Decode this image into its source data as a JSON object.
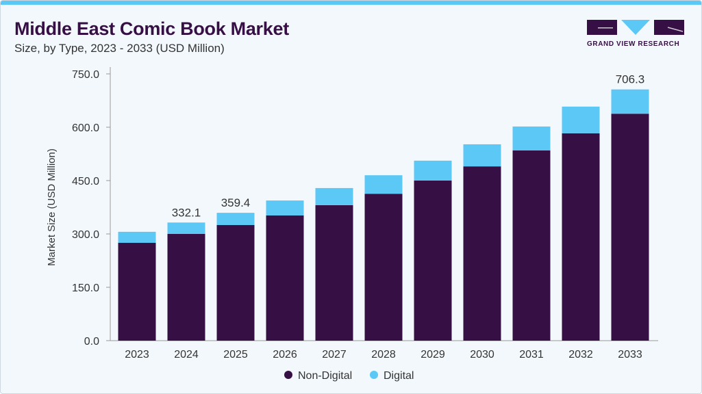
{
  "header": {
    "title": "Middle East Comic Book Market",
    "subtitle": "Size, by Type, 2023 - 2033 (USD Million)"
  },
  "logo": {
    "text": "GRAND VIEW RESEARCH"
  },
  "colors": {
    "non_digital": "#360f45",
    "digital": "#5bc8f5",
    "accent": "#5bc8f5"
  },
  "chart_data": {
    "type": "bar",
    "stacked": true,
    "title": "Middle East Comic Book Market",
    "subtitle": "Size, by Type, 2023 - 2033 (USD Million)",
    "xlabel": "",
    "ylabel": "Market Size (USD Million)",
    "ylim": [
      0,
      750
    ],
    "yticks": [
      "0.0",
      "150.0",
      "300.0",
      "450.0",
      "600.0",
      "750.0"
    ],
    "grid": false,
    "legend_placement": "bottom",
    "categories": [
      "2023",
      "2024",
      "2025",
      "2026",
      "2027",
      "2028",
      "2029",
      "2030",
      "2031",
      "2032",
      "2033"
    ],
    "series": [
      {
        "name": "Non-Digital",
        "values": [
          275,
          300,
          325,
          352,
          381,
          413,
          450,
          490,
          535,
          583,
          638
        ]
      },
      {
        "name": "Digital",
        "values": [
          31,
          32.1,
          34.4,
          42,
          48,
          52,
          56,
          62,
          67,
          75,
          68.3
        ]
      }
    ],
    "data_labels": {
      "2024": "332.1",
      "2025": "359.4",
      "2033": "706.3"
    }
  }
}
